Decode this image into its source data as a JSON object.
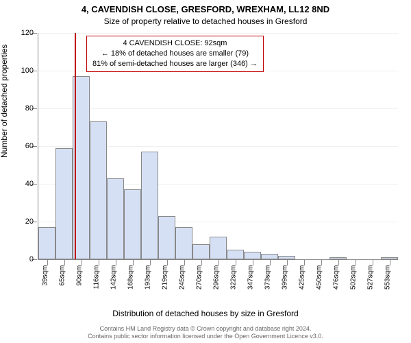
{
  "title": "4, CAVENDISH CLOSE, GRESFORD, WREXHAM, LL12 8ND",
  "subtitle": "Size of property relative to detached houses in Gresford",
  "ylabel": "Number of detached properties",
  "xlabel": "Distribution of detached houses by size in Gresford",
  "chart": {
    "type": "bar",
    "ylim": [
      0,
      120
    ],
    "ytick_step": 20,
    "bar_fill": "#d6e0f5",
    "bar_border": "#888888",
    "marker_color": "#c00000",
    "background_color": "#ffffff",
    "grid_color": "#f0f0f0",
    "categories": [
      "39sqm",
      "65sqm",
      "90sqm",
      "116sqm",
      "142sqm",
      "168sqm",
      "193sqm",
      "219sqm",
      "245sqm",
      "270sqm",
      "296sqm",
      "322sqm",
      "347sqm",
      "373sqm",
      "399sqm",
      "425sqm",
      "450sqm",
      "476sqm",
      "502sqm",
      "527sqm",
      "553sqm"
    ],
    "values": [
      17,
      59,
      97,
      73,
      43,
      37,
      57,
      23,
      17,
      8,
      12,
      5,
      4,
      3,
      2,
      0,
      0,
      1,
      0,
      0,
      1
    ],
    "marker_position_index": 2.1
  },
  "callout": {
    "line1": "4 CAVENDISH CLOSE: 92sqm",
    "line2": "← 18% of detached houses are smaller (79)",
    "line3": "81% of semi-detached houses are larger (346) →"
  },
  "attribution": {
    "line1": "Contains HM Land Registry data © Crown copyright and database right 2024.",
    "line2": "Contains public sector information licensed under the Open Government Licence v3.0."
  }
}
